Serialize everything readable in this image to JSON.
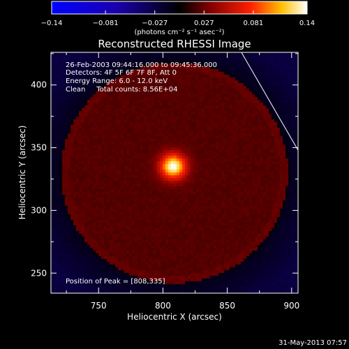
{
  "chart_data": {
    "type": "heatmap",
    "title": "Reconstructed RHESSI Image",
    "xlabel": "Heliocentric X (arcsec)",
    "ylabel": "Heliocentric Y (arcsec)",
    "xlim": [
      713,
      905
    ],
    "ylim": [
      234,
      426
    ],
    "x_ticks": [
      750,
      800,
      850,
      900
    ],
    "y_ticks": [
      250,
      300,
      350,
      400
    ],
    "x_tick_labels": [
      "750",
      "800",
      "850",
      "900"
    ],
    "y_tick_labels": [
      "250",
      "300",
      "350",
      "400"
    ],
    "colorbar": {
      "range": [
        -0.14,
        0.14
      ],
      "tick_values": [
        -0.14,
        -0.081,
        -0.027,
        0.027,
        0.081,
        0.14
      ],
      "tick_labels": [
        "−0.14",
        "−0.081",
        "−0.027",
        "0.027",
        "0.081",
        "0.14"
      ],
      "unit_label": "(photons cm⁻² s⁻¹ asec⁻²)",
      "colormap": "blue-black-red-yellow-white"
    },
    "annotations": [
      "26-Feb-2003 09:44:16.000 to 09:45:36.000",
      "Detectors: 4F 5F 6F 7F 8F, Att 0",
      "Energy Range: 6.0 - 12.0 keV",
      "Clean     Total counts: 8.56E+04"
    ],
    "peak_label": "Position of Peak = [808,335]",
    "peak": {
      "x": 808,
      "y": 335,
      "value": 0.14
    },
    "limb_line": {
      "points": [
        [
          861,
          426
        ],
        [
          905,
          348
        ]
      ]
    },
    "background_ring": {
      "center": [
        809,
        330
      ],
      "radius": 88,
      "level": 0.022
    },
    "grid": false
  },
  "footer": {
    "timestamp": "31-May-2013 07:57"
  }
}
